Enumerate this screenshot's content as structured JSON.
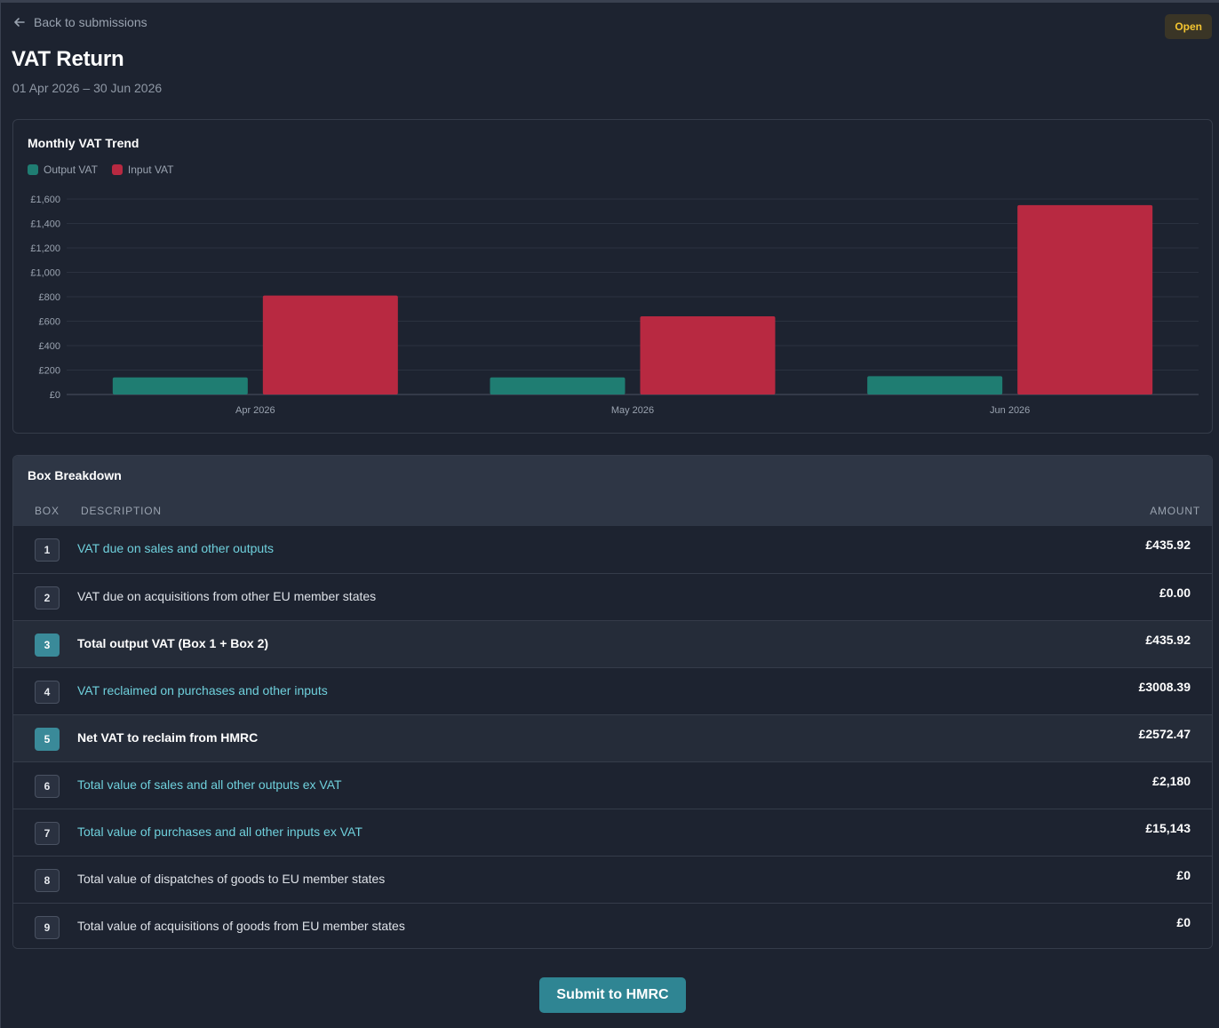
{
  "nav": {
    "back_label": "Back to submissions"
  },
  "status": {
    "label": "Open",
    "color": "#f4c531"
  },
  "header": {
    "title": "VAT Return",
    "period": "01 Apr 2026 – 30 Jun 2026"
  },
  "chart": {
    "title": "Monthly VAT Trend",
    "legend": [
      {
        "label": "Output VAT",
        "color": "#1f7d72"
      },
      {
        "label": "Input VAT",
        "color": "#b82941"
      }
    ]
  },
  "chart_data": {
    "type": "bar",
    "title": "Monthly VAT Trend",
    "categories": [
      "Apr 2026",
      "May 2026",
      "Jun 2026"
    ],
    "series": [
      {
        "name": "Output VAT",
        "values": [
          140,
          140,
          150
        ],
        "color": "#1f7d72"
      },
      {
        "name": "Input VAT",
        "values": [
          810,
          640,
          1550
        ],
        "color": "#b82941"
      }
    ],
    "ylim": [
      0,
      1600
    ],
    "yticks": [
      "£0",
      "£200",
      "£400",
      "£600",
      "£800",
      "£1,000",
      "£1,200",
      "£1,400",
      "£1,600"
    ],
    "ytick_values": [
      0,
      200,
      400,
      600,
      800,
      1000,
      1200,
      1400,
      1600
    ],
    "grid": true,
    "legend_position": "top-left"
  },
  "breakdown": {
    "title": "Box Breakdown",
    "columns": {
      "box": "BOX",
      "description": "DESCRIPTION",
      "amount": "AMOUNT"
    },
    "rows": [
      {
        "box": "1",
        "description": "VAT due on sales and other outputs",
        "amount": "£435.92",
        "style": "link"
      },
      {
        "box": "2",
        "description": "VAT due on acquisitions from other EU member states",
        "amount": "£0.00",
        "style": "plain"
      },
      {
        "box": "3",
        "description": "Total output VAT (Box 1 + Box 2)",
        "amount": "£435.92",
        "style": "total"
      },
      {
        "box": "4",
        "description": "VAT reclaimed on purchases and other inputs",
        "amount": "£3008.39",
        "style": "link"
      },
      {
        "box": "5",
        "description": "Net VAT to reclaim from HMRC",
        "amount": "£2572.47",
        "style": "total"
      },
      {
        "box": "6",
        "description": "Total value of sales and all other outputs ex VAT",
        "amount": "£2,180",
        "style": "link"
      },
      {
        "box": "7",
        "description": "Total value of purchases and all other inputs ex VAT",
        "amount": "£15,143",
        "style": "link"
      },
      {
        "box": "8",
        "description": "Total value of dispatches of goods to EU member states",
        "amount": "£0",
        "style": "plain"
      },
      {
        "box": "9",
        "description": "Total value of acquisitions of goods from EU member states",
        "amount": "£0",
        "style": "plain"
      }
    ]
  },
  "actions": {
    "submit_label": "Submit to HMRC"
  }
}
